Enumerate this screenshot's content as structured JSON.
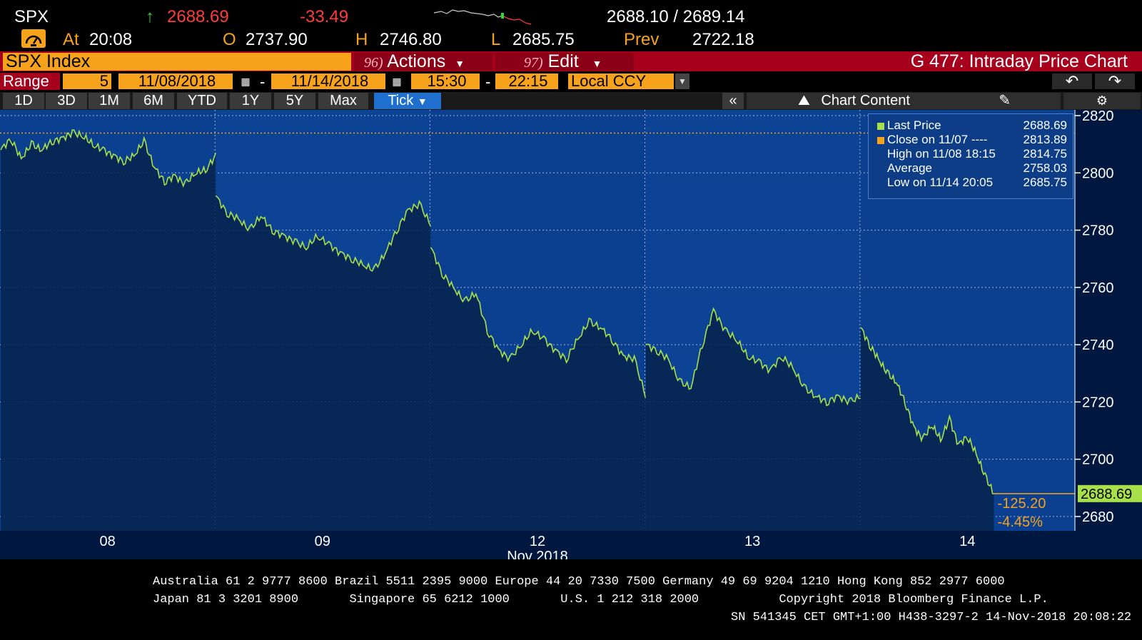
{
  "quote": {
    "ticker": "SPX",
    "arrow": "↑",
    "last": "2688.69",
    "change": "-33.49",
    "bid_ask": "2688.10 / 2689.14",
    "at_label": "At",
    "time": "20:08",
    "open_label": "O",
    "open": "2737.90",
    "high_label": "H",
    "high": "2746.80",
    "low_label": "L",
    "low": "2685.75",
    "prev_label": "Prev",
    "prev": "2722.18"
  },
  "toolbar": {
    "security": "SPX Index",
    "actions_num": "96)",
    "actions_label": "Actions",
    "edit_num": "97)",
    "edit_label": "Edit",
    "title": "G 477: Intraday Price Chart"
  },
  "range": {
    "label": "Range",
    "period": "5",
    "start_date": "11/08/2018",
    "end_date": "11/14/2018",
    "start_time": "15:30",
    "end_time": "22:15",
    "currency": "Local CCY",
    "separator": "-"
  },
  "tabs": [
    "1D",
    "3D",
    "1M",
    "6M",
    "YTD",
    "1Y",
    "5Y",
    "Max",
    "Tick"
  ],
  "active_tab": "Tick",
  "chart_content_label": "Chart Content",
  "legend": [
    {
      "label": "Last Price",
      "value": "2688.69",
      "color": "#a8e04a"
    },
    {
      "label": "Close on 11/07 ----",
      "value": "2813.89",
      "color": "#f7a21b"
    },
    {
      "label": "High on 11/08 18:15",
      "value": "2814.75",
      "color": ""
    },
    {
      "label": "Average",
      "value": "2758.03",
      "color": ""
    },
    {
      "label": "Low on 11/14 20:05",
      "value": "2685.75",
      "color": ""
    }
  ],
  "chart_data": {
    "type": "line",
    "ylim": [
      2675,
      2822
    ],
    "yticks": [
      2680,
      2700,
      2720,
      2740,
      2760,
      2780,
      2800,
      2820
    ],
    "x_day_labels": [
      "08",
      "09",
      "12",
      "13",
      "14"
    ],
    "x_month_label": "Nov 2018",
    "last_value_label": "2688.69",
    "change_abs": "-125.20",
    "change_pct": "-4.45%",
    "prev_close": 2813.89,
    "series": [
      {
        "name": "Last Price",
        "color": "#a8e04a",
        "days": [
          {
            "day": "08",
            "values": [
              2808,
              2812,
              2805,
              2810,
              2808,
              2811,
              2812,
              2814,
              2813,
              2810,
              2808,
              2806,
              2804,
              2806,
              2811,
              2802,
              2797,
              2799,
              2796,
              2800,
              2801,
              2806
            ]
          },
          {
            "day": "09",
            "values": [
              2792,
              2786,
              2784,
              2780,
              2785,
              2780,
              2778,
              2776,
              2774,
              2778,
              2775,
              2772,
              2770,
              2768,
              2766,
              2772,
              2780,
              2787,
              2789,
              2782
            ]
          },
          {
            "day": "12",
            "values": [
              2774,
              2765,
              2760,
              2755,
              2758,
              2745,
              2738,
              2735,
              2740,
              2745,
              2742,
              2738,
              2735,
              2742,
              2748,
              2746,
              2742,
              2736,
              2735,
              2722
            ]
          },
          {
            "day": "13",
            "values": [
              2740,
              2738,
              2735,
              2727,
              2725,
              2740,
              2752,
              2745,
              2742,
              2736,
              2734,
              2731,
              2736,
              2732,
              2725,
              2722,
              2720,
              2722,
              2720,
              2722
            ]
          },
          {
            "day": "14",
            "values": [
              2746,
              2740,
              2735,
              2730,
              2727,
              2720,
              2711,
              2707,
              2712,
              2707,
              2714,
              2705,
              2708,
              2702,
              2694,
              2688
            ]
          }
        ]
      }
    ],
    "extra_levels": [
      {
        "name": "High on 11/08 18:15",
        "value": 2814.75
      },
      {
        "name": "Low on 11/14 20:05",
        "value": 2685.75
      },
      {
        "name": "Average",
        "value": 2758.03
      }
    ]
  },
  "footer": {
    "line1": "Australia 61 2 9777 8600 Brazil 5511 2395 9000 Europe 44 20 7330 7500 Germany 49 69 9204 1210 Hong Kong 852 2977 6000",
    "line2": "Japan 81 3 3201 8900       Singapore 65 6212 1000       U.S. 1 212 318 2000           Copyright 2018 Bloomberg Finance L.P.",
    "line3": "SN 541345 CET  GMT+1:00 H438-3297-2 14-Nov-2018 20:08:22"
  }
}
